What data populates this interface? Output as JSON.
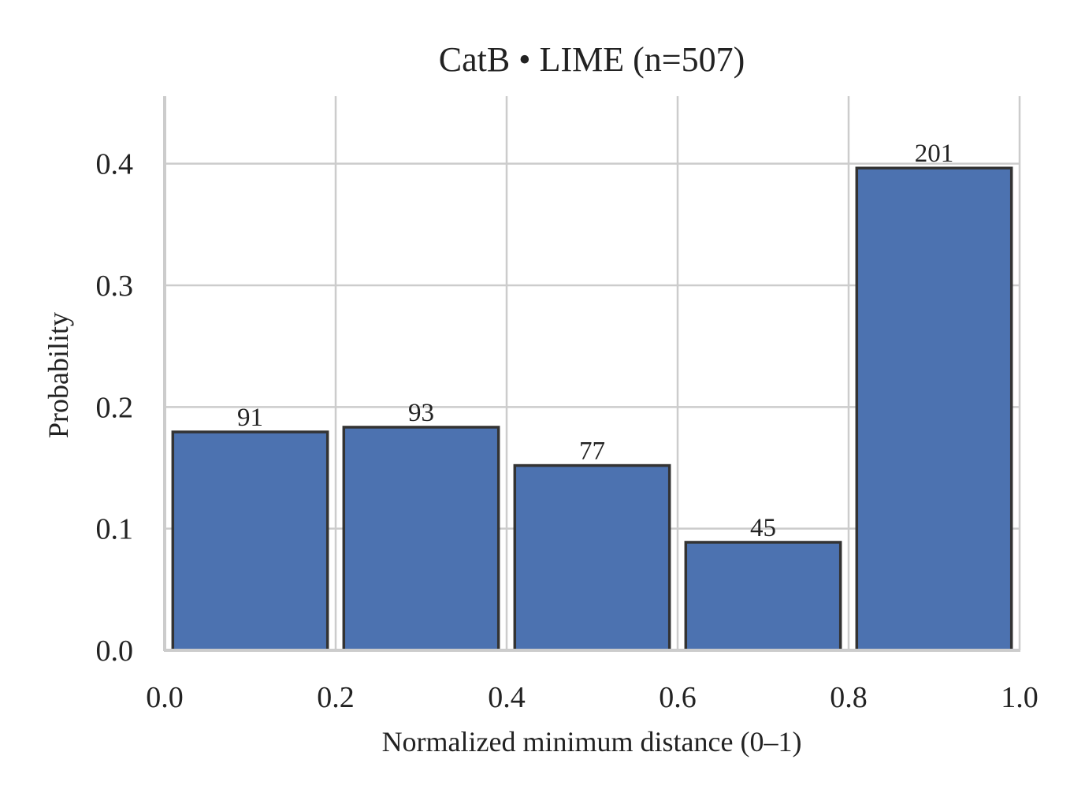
{
  "chart_data": {
    "type": "bar",
    "title": "CatB • LIME  (n=507)",
    "xlabel": "Normalized minimum distance (0–1)",
    "ylabel": "Probability",
    "bins": [
      [
        0.0,
        0.2
      ],
      [
        0.2,
        0.4
      ],
      [
        0.4,
        0.6
      ],
      [
        0.6,
        0.8
      ],
      [
        0.8,
        1.0
      ]
    ],
    "values": [
      0.1795,
      0.1834,
      0.1519,
      0.0888,
      0.3964
    ],
    "counts": [
      "91",
      "93",
      "77",
      "45",
      "201"
    ],
    "xlim": [
      0.0,
      1.0
    ],
    "ylim": [
      0.0,
      0.4555
    ],
    "xticks": [
      "0.0",
      "0.2",
      "0.4",
      "0.6",
      "0.8",
      "1.0"
    ],
    "yticks": [
      "0.0",
      "0.1",
      "0.2",
      "0.3",
      "0.4"
    ],
    "grid": true,
    "bar_color": "#4c72b0",
    "edge_color": "#333333"
  }
}
